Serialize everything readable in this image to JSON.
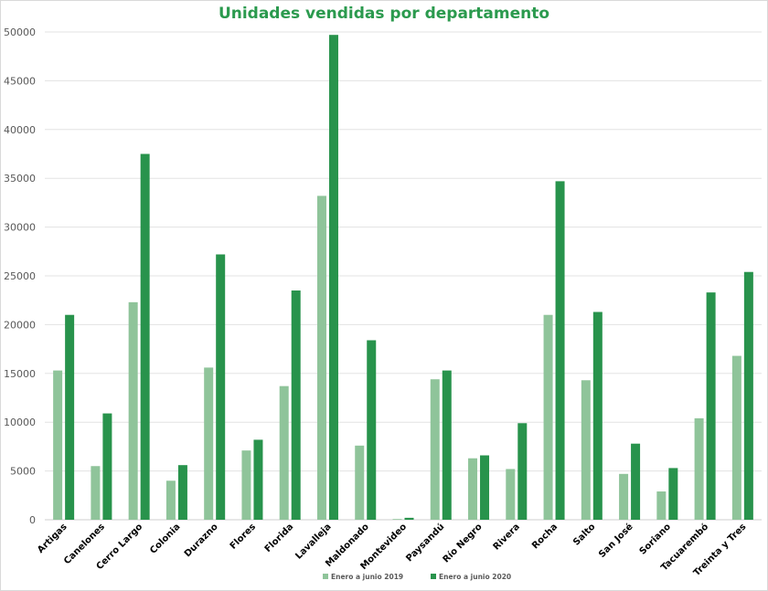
{
  "colors": {
    "title": "#2b9a4e",
    "series_2019": "#8fc49a",
    "series_2020": "#28934c",
    "grid": "#e3e3e3",
    "axis": "#cfcfcf"
  },
  "chart_data": {
    "type": "bar",
    "title": "Unidades vendidas por departamento",
    "xlabel": "",
    "ylabel": "",
    "ylim": [
      0,
      50000
    ],
    "yticks": [
      0,
      5000,
      10000,
      15000,
      20000,
      25000,
      30000,
      35000,
      40000,
      45000,
      50000
    ],
    "grid": true,
    "legend_position": "bottom",
    "categories": [
      "Artigas",
      "Canelones",
      "Cerro Largo",
      "Colonia",
      "Durazno",
      "Flores",
      "Florida",
      "Lavalleja",
      "Maldonado",
      "Montevideo",
      "Paysandú",
      "Río Negro",
      "Rivera",
      "Rocha",
      "Salto",
      "San José",
      "Soriano",
      "Tacuarembó",
      "Treinta y Tres"
    ],
    "series": [
      {
        "name": "Enero a junio 2019",
        "values": [
          15300,
          5500,
          22300,
          4000,
          15600,
          7100,
          13700,
          33200,
          7600,
          50,
          14400,
          6300,
          5200,
          21000,
          14300,
          4700,
          2900,
          10400,
          16800
        ]
      },
      {
        "name": "Enero a junio 2020",
        "values": [
          21000,
          10900,
          37500,
          5600,
          27200,
          8200,
          23500,
          49700,
          18400,
          200,
          15300,
          6600,
          9900,
          34700,
          21300,
          7800,
          5300,
          23300,
          25400
        ]
      }
    ]
  }
}
